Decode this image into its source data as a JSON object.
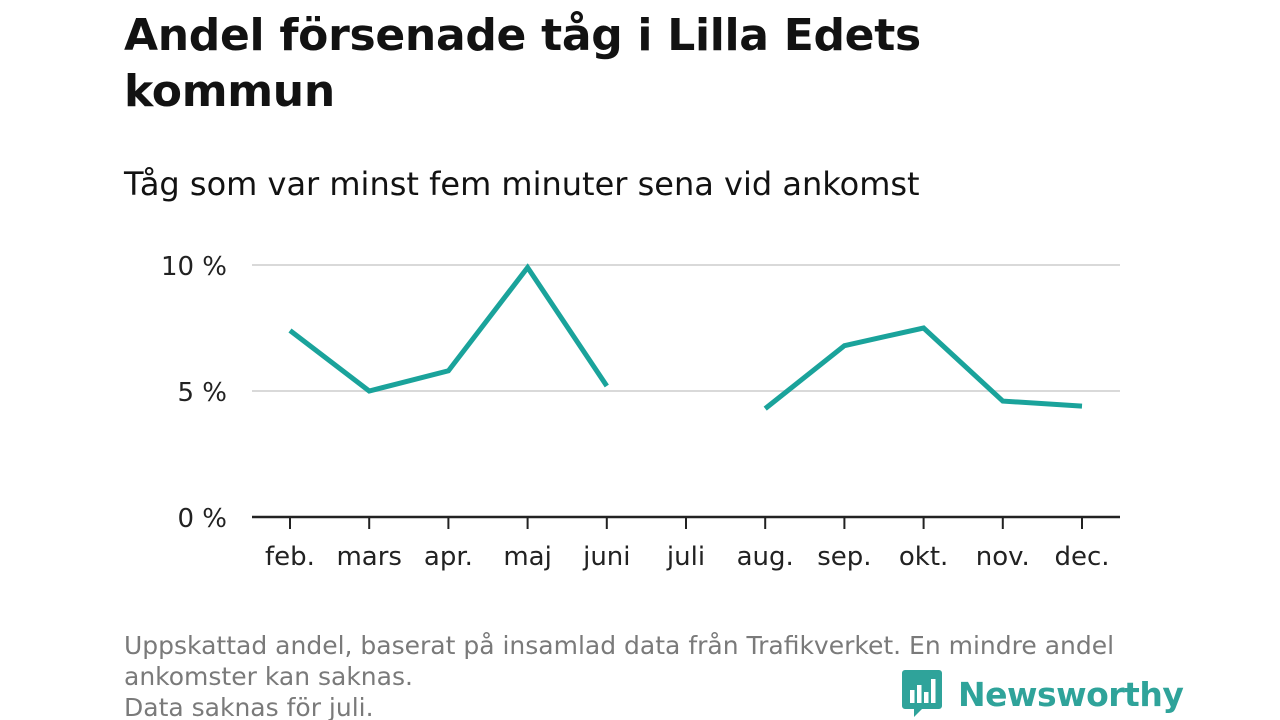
{
  "title": "Andel försenade tåg i Lilla Edets kommun",
  "subtitle": "Tåg som var minst fem minuter sena vid ankomst",
  "footnote": {
    "line1": "Uppskattad andel, baserat på insamlad data från Trafikverket. En mindre andel",
    "line2": "ankomster kan saknas.",
    "line3": "Data saknas för juli."
  },
  "brand": {
    "name": "Newsworthy",
    "icon": "newsworthy-logo-icon",
    "color": "#2fa39a"
  },
  "colors": {
    "line": "#1aa39b",
    "grid": "#d9d9d9",
    "axis": "#222222"
  },
  "chart_data": {
    "type": "line",
    "title": "Andel försenade tåg i Lilla Edets kommun",
    "subtitle": "Tåg som var minst fem minuter sena vid ankomst",
    "categories": [
      "feb.",
      "mars",
      "apr.",
      "maj",
      "juni",
      "juli",
      "aug.",
      "sep.",
      "okt.",
      "nov.",
      "dec."
    ],
    "series": [
      {
        "values": [
          7.4,
          5.0,
          5.8,
          9.9,
          5.2,
          null,
          4.3,
          6.8,
          7.5,
          4.6,
          4.4
        ]
      }
    ],
    "yticks": [
      {
        "value": 0,
        "label": "0 %"
      },
      {
        "value": 5,
        "label": "5 %"
      },
      {
        "value": 10,
        "label": "10 %"
      }
    ],
    "ylim": [
      0,
      10
    ],
    "xlabel": "",
    "ylabel": "",
    "grid": true,
    "unit": "%"
  }
}
